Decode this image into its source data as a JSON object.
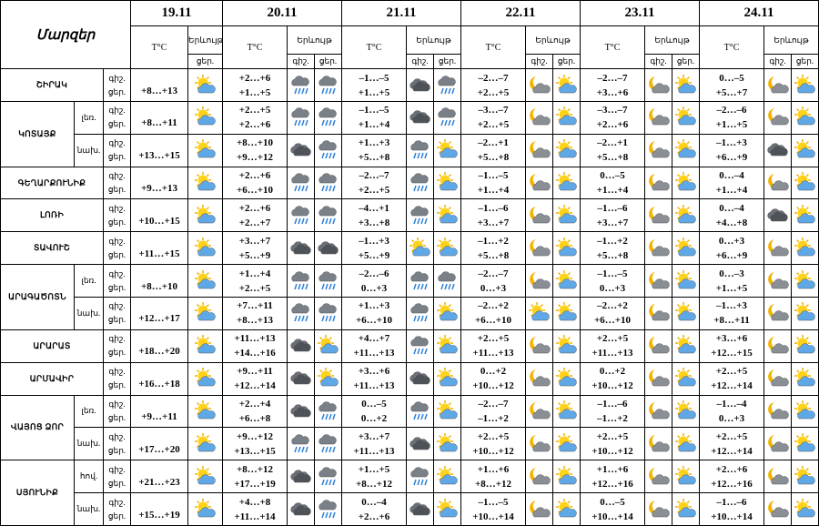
{
  "header": {
    "title": "Մարզեր",
    "dates": [
      "19.11",
      "20.11",
      "21.11",
      "22.11",
      "23.11",
      "24.11"
    ],
    "temp": "T°C",
    "phenomenon": "Երևույթ",
    "night": "գիշ.",
    "day": "ցեր."
  },
  "regions": [
    {
      "name": "ՇԻՐԱԿ",
      "areas": [
        {
          "periods": [
            "գիշ.",
            "ցեր."
          ],
          "temps": [
            "+8…+13",
            [
              "+2…+6",
              "+1…+5"
            ],
            [
              "–1…–5",
              "+1…+5"
            ],
            [
              "–2…–7",
              "+2…+5"
            ],
            [
              "–2…–7",
              "+3…+6"
            ],
            [
              "0…–5",
              "+5…+7"
            ]
          ]
        }
      ]
    },
    {
      "name": "ԿՈՏԱՅՔ",
      "areas": [
        {
          "zone": "լեռ.",
          "periods": [
            "գիշ.",
            "ցեր."
          ],
          "temps": [
            "+8…+11",
            [
              "+2…+5",
              "+2…+6"
            ],
            [
              "–1…–5",
              "+1…+4"
            ],
            [
              "–3…–7",
              "+2…+5"
            ],
            [
              "–3…–7",
              "+2…+6"
            ],
            [
              "–2…–6",
              "+1…+5"
            ]
          ]
        },
        {
          "zone": "նախ.",
          "periods": [
            "գիշ.",
            "ցեր."
          ],
          "temps": [
            "+13…+15",
            [
              "+8…+10",
              "+9…+12"
            ],
            [
              "+1…+3",
              "+5…+8"
            ],
            [
              "–2…+1",
              "+5…+8"
            ],
            [
              "–2…+1",
              "+5…+8"
            ],
            [
              "–1…+3",
              "+6…+9"
            ]
          ]
        }
      ]
    },
    {
      "name": "ԳԵՂԱՐՔՈՒՆԻՔ",
      "areas": [
        {
          "periods": [
            "գիշ.",
            "ցեր."
          ],
          "temps": [
            "+9…+13",
            [
              "+2…+6",
              "+6…+10"
            ],
            [
              "–2…–7",
              "+2…+5"
            ],
            [
              "–1…–5",
              "+1…+4"
            ],
            [
              "0…–5",
              "+1…+4"
            ],
            [
              "0…–4",
              "+1…+4"
            ]
          ]
        }
      ]
    },
    {
      "name": "ԼՈՌԻ",
      "areas": [
        {
          "periods": [
            "գիշ.",
            "ցեր."
          ],
          "temps": [
            "+10…+15",
            [
              "+2…+6",
              "+2…+7"
            ],
            [
              "–4…+1",
              "+3…+8"
            ],
            [
              "–1…–6",
              "+3…+7"
            ],
            [
              "–1…–6",
              "+3…+7"
            ],
            [
              "0…–4",
              "+4…+8"
            ]
          ]
        }
      ]
    },
    {
      "name": "ՏԱՎՈՒՇ",
      "areas": [
        {
          "periods": [
            "գիշ.",
            "ցեր."
          ],
          "temps": [
            "+11…+15",
            [
              "+3…+7",
              "+5…+9"
            ],
            [
              "–1…+3",
              "+5…+9"
            ],
            [
              "–1…+2",
              "+5…+8"
            ],
            [
              "–1…+2",
              "+5…+8"
            ],
            [
              "0…+3",
              "+6…+9"
            ]
          ]
        }
      ]
    },
    {
      "name": "ԱՐԱԳԱԾՈՏՆ",
      "areas": [
        {
          "zone": "լեռ.",
          "periods": [
            "գիշ.",
            "ցեր."
          ],
          "temps": [
            "+8…+10",
            [
              "+1…+4",
              "+2…+5"
            ],
            [
              "–2…–6",
              "0…+3"
            ],
            [
              "–2…–7",
              "0…+3"
            ],
            [
              "–1…–5",
              "0…+3"
            ],
            [
              "0…–3",
              "+1…+5"
            ]
          ]
        },
        {
          "zone": "նախ.",
          "periods": [
            "գիշ.",
            "ցեր."
          ],
          "temps": [
            "+12…+17",
            [
              "+7…+11",
              "+8…+13"
            ],
            [
              "+1…+3",
              "+6…+10"
            ],
            [
              "–2…+2",
              "+6…+10"
            ],
            [
              "–2…+2",
              "+6…+10"
            ],
            [
              "–1…+3",
              "+8…+11"
            ]
          ]
        }
      ]
    },
    {
      "name": "ԱՐԱՐԱՏ",
      "areas": [
        {
          "periods": [
            "գիշ.",
            "ցեր."
          ],
          "temps": [
            "+18…+20",
            [
              "+11…+13",
              "+14…+16"
            ],
            [
              "+4…+7",
              "+11…+13"
            ],
            [
              "+2…+5",
              "+11…+13"
            ],
            [
              "+2…+5",
              "+11…+13"
            ],
            [
              "+3…+6",
              "+12…+15"
            ]
          ]
        }
      ]
    },
    {
      "name": "ԱՐՄԱՎԻՐ",
      "areas": [
        {
          "periods": [
            "գիշ.",
            "ցեր."
          ],
          "temps": [
            "+16…+18",
            [
              "+9…+11",
              "+12…+14"
            ],
            [
              "+3…+6",
              "+11…+13"
            ],
            [
              "0…+2",
              "+10…+12"
            ],
            [
              "0…+2",
              "+10…+12"
            ],
            [
              "+2…+5",
              "+12…+14"
            ]
          ]
        }
      ]
    },
    {
      "name": "ՎԱՅՈՑ ՁՈՐ",
      "areas": [
        {
          "zone": "լեռ.",
          "periods": [
            "գիշ.",
            "ցեր."
          ],
          "temps": [
            "+9…+11",
            [
              "+2…+4",
              "+6…+8"
            ],
            [
              "0…–5",
              "0…+2"
            ],
            [
              "–2…–7",
              "–1…+2"
            ],
            [
              "–1…–6",
              "–1…+2"
            ],
            [
              "–1…–4",
              "0…+3"
            ]
          ]
        },
        {
          "zone": "նախ.",
          "periods": [
            "գիշ.",
            "ցեր."
          ],
          "temps": [
            "+17…+20",
            [
              "+9…+12",
              "+13…+15"
            ],
            [
              "+3…+7",
              "+11…+13"
            ],
            [
              "+2…+5",
              "+10…+12"
            ],
            [
              "+2…+5",
              "+10…+12"
            ],
            [
              "+2…+5",
              "+12…+14"
            ]
          ]
        }
      ]
    },
    {
      "name": "ՍՅՈՒՆԻՔ",
      "areas": [
        {
          "zone": "հով.",
          "periods": [
            "գիշ.",
            "ցեր."
          ],
          "temps": [
            "+21…+23",
            [
              "+8…+12",
              "+17…+19"
            ],
            [
              "+1…+5",
              "+8…+12"
            ],
            [
              "+1…+6",
              "+8…+12"
            ],
            [
              "+1…+6",
              "+12…+16"
            ],
            [
              "+2…+6",
              "+12…+16"
            ]
          ]
        },
        {
          "zone": "նախ.",
          "periods": [
            "գիշ.",
            "ցեր."
          ],
          "temps": [
            "+15…+19",
            [
              "+4…+8",
              "+11…+14"
            ],
            [
              "0…–4",
              "+2…+6"
            ],
            [
              "–1…–5",
              "+10…+14"
            ],
            [
              "0…–5",
              "+10…+14"
            ],
            [
              "–1…–6",
              "+10…+14"
            ]
          ]
        }
      ]
    }
  ]
}
